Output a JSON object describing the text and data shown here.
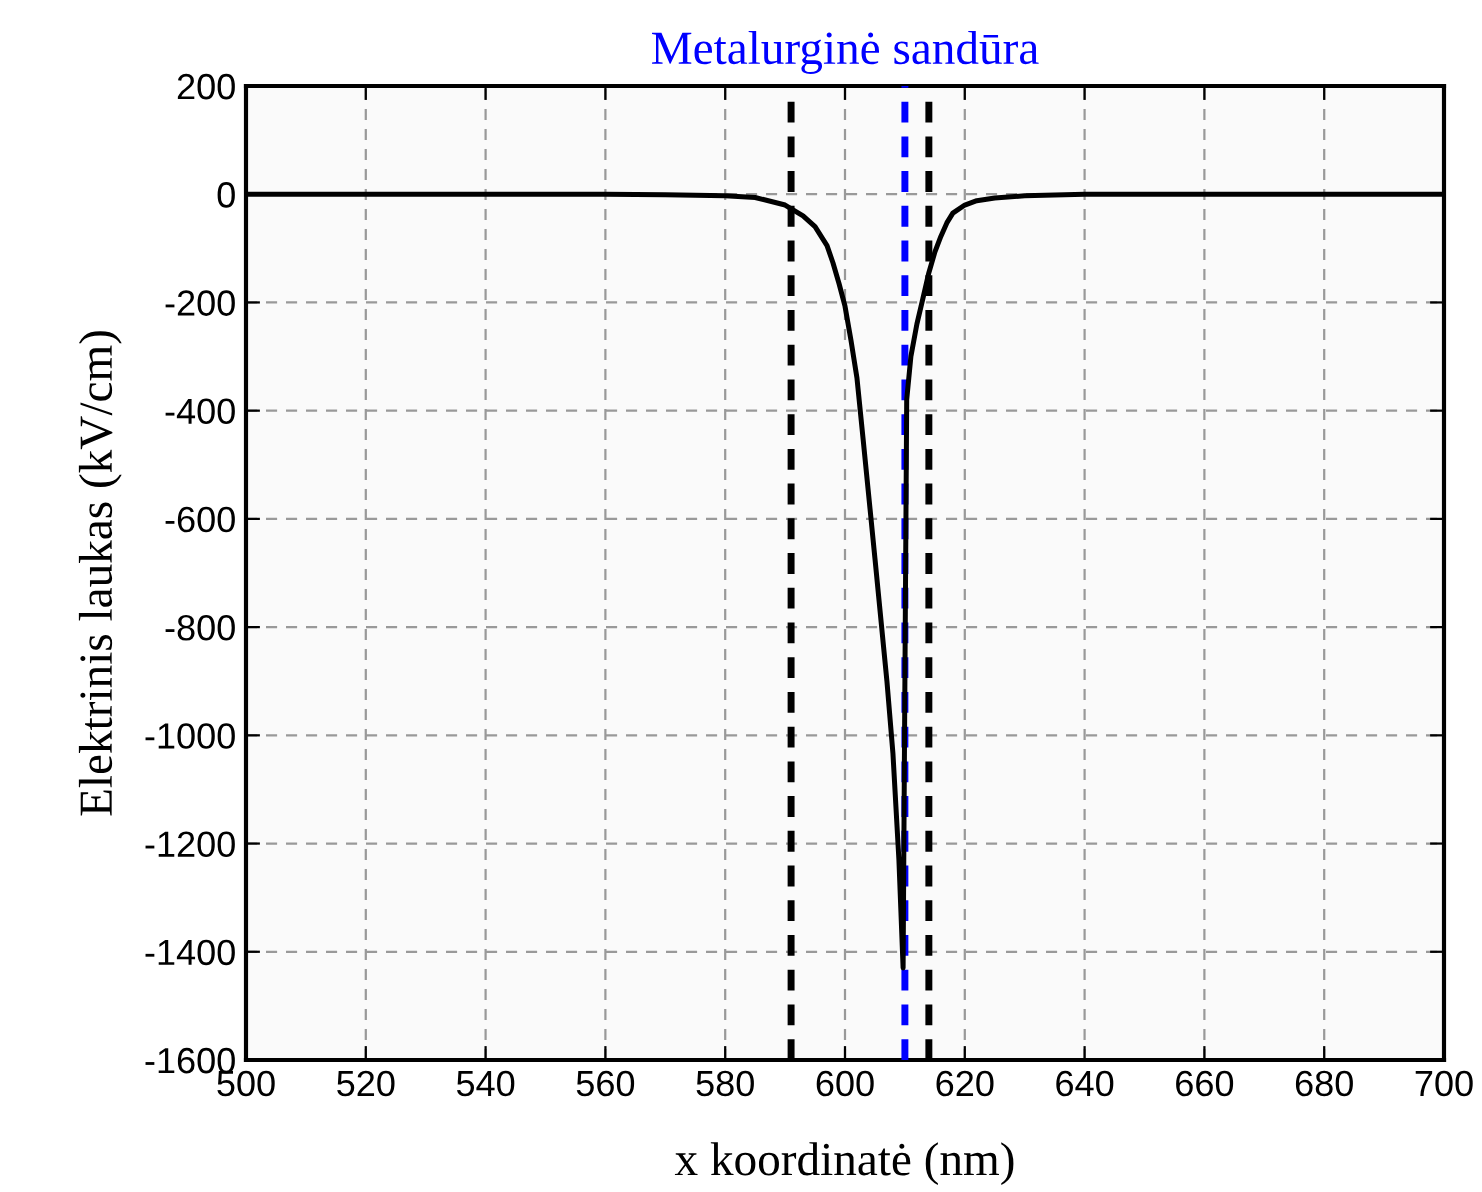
{
  "chart_data": {
    "type": "line",
    "title": "Metalurginė sandūra",
    "xlabel": "x koordinatė (nm)",
    "ylabel": "Elektrinis laukas (kV/cm)",
    "series": [
      {
        "color": "#000000",
        "x": [
          500,
          540,
          560,
          570,
          575,
          580,
          585,
          590,
          593,
          595,
          597,
          598,
          599,
          600,
          601,
          602,
          603,
          605,
          607,
          608,
          609,
          609.7,
          610.0,
          610.3,
          611,
          612,
          613,
          614,
          615,
          616,
          617,
          618,
          620,
          622,
          625,
          630,
          640,
          660,
          700
        ],
        "values": [
          0,
          0,
          0,
          -1,
          -2,
          -3,
          -6,
          -20,
          -40,
          -60,
          -95,
          -127,
          -165,
          -207,
          -270,
          -340,
          -450,
          -673,
          -900,
          -1033,
          -1230,
          -1430,
          -900,
          -380,
          -300,
          -240,
          -193,
          -145,
          -107,
          -78,
          -53,
          -35,
          -20,
          -12,
          -7,
          -3,
          0,
          0,
          0
        ]
      }
    ],
    "xlim": [
      500,
      700
    ],
    "ylim": [
      -1600,
      200
    ],
    "xticks": [
      500,
      520,
      540,
      560,
      580,
      600,
      620,
      640,
      660,
      680,
      700
    ],
    "yticks": [
      -1600,
      -1400,
      -1200,
      -1000,
      -800,
      -600,
      -400,
      -200,
      0,
      200
    ],
    "grid": true,
    "line_style": "solid",
    "marker": "none",
    "ref_lines": [
      {
        "axis": "x",
        "value": 591,
        "color": "#000000",
        "line_style": "dashed"
      },
      {
        "axis": "x",
        "value": 610,
        "color": "#0000ff",
        "line_style": "dashed"
      },
      {
        "axis": "x",
        "value": 614,
        "color": "#000000",
        "line_style": "dashed"
      }
    ]
  }
}
